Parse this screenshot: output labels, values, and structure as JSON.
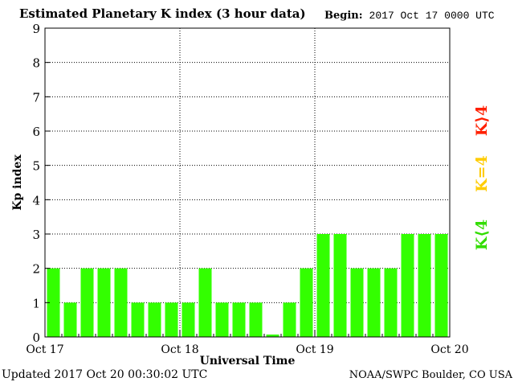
{
  "header": {
    "title": "Estimated Planetary K index (3 hour data)",
    "begin_label": "Begin:",
    "begin_value": "2017 Oct 17 0000 UTC"
  },
  "footer": {
    "updated": "Updated 2017 Oct 20 00:30:02 UTC",
    "source": "NOAA/SWPC Boulder, CO USA"
  },
  "legend": [
    {
      "label": "K>4",
      "color": "#ff2000"
    },
    {
      "label": "K=4",
      "color": "#ffcc00"
    },
    {
      "label": "K<4",
      "color": "#33dd00"
    }
  ],
  "chart_data": {
    "type": "bar",
    "title": "Estimated Planetary K index (3 hour data)",
    "xlabel": "Universal Time",
    "ylabel": "Kp index",
    "ylim": [
      0,
      9
    ],
    "yticks": [
      0,
      1,
      2,
      3,
      4,
      5,
      6,
      7,
      8,
      9
    ],
    "x_ticklabels": [
      "Oct 17",
      "Oct 18",
      "Oct 19",
      "Oct 20"
    ],
    "grid": true,
    "bar_color": "#33ff00",
    "values": [
      2,
      1,
      2,
      2,
      2,
      1,
      1,
      1,
      1,
      2,
      1,
      1,
      1,
      0.07,
      1,
      2,
      3,
      3,
      2,
      2,
      2,
      3,
      3,
      3
    ]
  }
}
